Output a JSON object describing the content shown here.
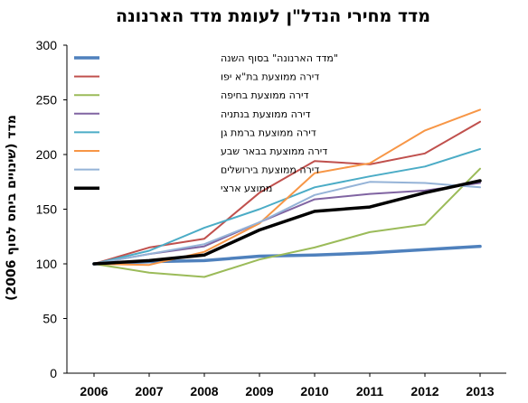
{
  "chart_data": {
    "type": "line",
    "title": "מדד מחירי הנדל\"ן לעומת מדד הארנונה",
    "ylabel": "מדד (שינויים ביחס לסוף 2006)",
    "xlabel": "",
    "x": [
      "2006",
      "2007",
      "2008",
      "2009",
      "2010",
      "2011",
      "2012",
      "2013"
    ],
    "ylim": [
      0,
      300
    ],
    "yticks": [
      0,
      50,
      100,
      150,
      200,
      250,
      300
    ],
    "grid": false,
    "legend_position": "top-left",
    "series": [
      {
        "name": "\"מדד הארנונה\" בסוף השנה",
        "color": "#4f81bd",
        "width": 3.5,
        "values": [
          100,
          102,
          103,
          107,
          108,
          110,
          113,
          116
        ]
      },
      {
        "name": "דירה ממוצעת בת\"א יפו",
        "color": "#c0504d",
        "width": 2,
        "values": [
          100,
          115,
          123,
          165,
          194,
          191,
          201,
          230
        ]
      },
      {
        "name": "דירה ממוצעת בחיפה",
        "color": "#9bbb59",
        "width": 2,
        "values": [
          100,
          92,
          88,
          104,
          115,
          129,
          136,
          187
        ]
      },
      {
        "name": "דירה ממוצעת בנתניה",
        "color": "#8064a2",
        "width": 2,
        "values": [
          100,
          109,
          116,
          138,
          159,
          164,
          167,
          174
        ]
      },
      {
        "name": "דירה ממוצעת ברמת גן",
        "color": "#4bacc6",
        "width": 2,
        "values": [
          100,
          112,
          133,
          150,
          170,
          180,
          189,
          205
        ]
      },
      {
        "name": "דירה ממוצעת בבאר שבע",
        "color": "#f79646",
        "width": 2,
        "values": [
          100,
          99,
          111,
          137,
          183,
          192,
          222,
          241
        ]
      },
      {
        "name": "דירה ממוצעת בירושלים",
        "color": "#95b3d7",
        "width": 2,
        "values": [
          100,
          109,
          118,
          138,
          163,
          175,
          174,
          170
        ]
      },
      {
        "name": "ממוצע ארצי",
        "color": "#000000",
        "width": 3.5,
        "values": [
          100,
          103,
          108,
          131,
          148,
          152,
          165,
          176
        ]
      }
    ]
  }
}
